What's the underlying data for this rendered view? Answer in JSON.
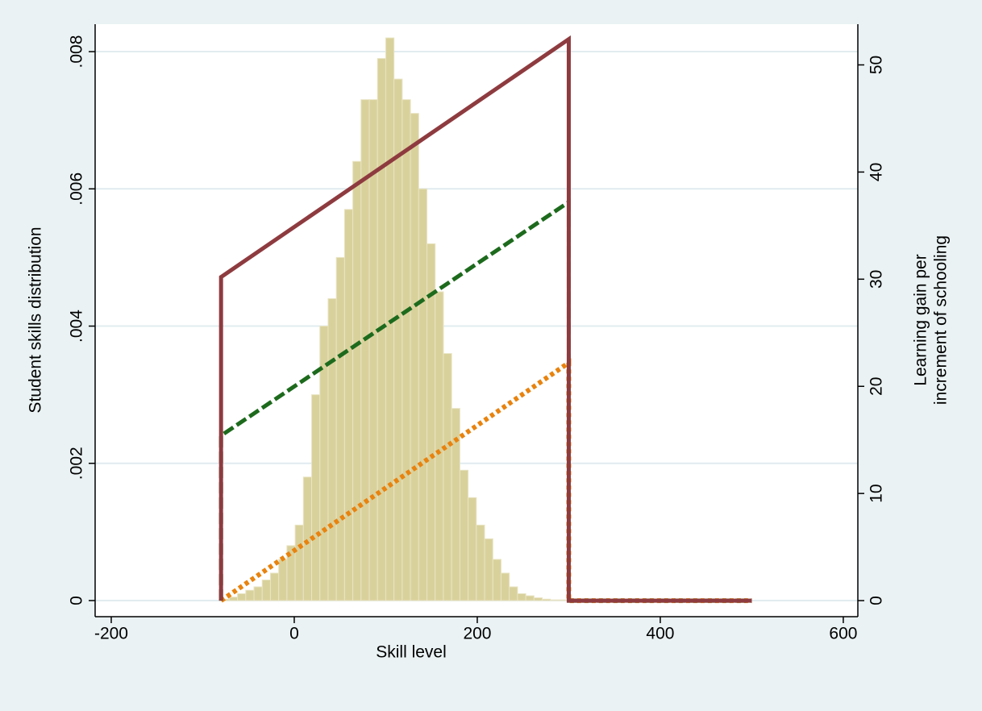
{
  "chart_data": {
    "type": "histogram",
    "xlabel": "Skill level",
    "ylabel": "Student skills distribution",
    "y2label": [
      "Learning gain per",
      "increment of schooling"
    ],
    "bins": [
      -80,
      -71,
      -62,
      -53,
      -44,
      -35,
      -26,
      -17,
      -8,
      1,
      10,
      19,
      28,
      37,
      46,
      55,
      64,
      73,
      82,
      91,
      100,
      109,
      118,
      127,
      136,
      145,
      154,
      163,
      172,
      181,
      190,
      199,
      208,
      217,
      226,
      235,
      244,
      253,
      262,
      271,
      280,
      289,
      298
    ],
    "values": [
      2e-05,
      5e-05,
      0.0001,
      0.00015,
      0.0002,
      0.0003,
      0.0004,
      0.0006,
      0.0008,
      0.0011,
      0.0018,
      0.003,
      0.004,
      0.0044,
      0.005,
      0.0057,
      0.0064,
      0.0073,
      0.0073,
      0.0079,
      0.0082,
      0.0076,
      0.0073,
      0.0071,
      0.006,
      0.0052,
      0.0045,
      0.0036,
      0.0028,
      0.0019,
      0.0015,
      0.0011,
      0.0009,
      0.0006,
      0.0004,
      0.0002,
      0.0001,
      7e-05,
      4e-05,
      2e-05,
      1e-05,
      1e-05
    ],
    "color": "#d9d19c",
    "series": [
      {
        "type": "line",
        "axis": "y2",
        "color": "#8e3b3f",
        "line_style": "solid",
        "x": [
          -80,
          -80,
          300,
          300,
          500
        ],
        "values": [
          0,
          30.2,
          52.4,
          0,
          0
        ]
      },
      {
        "type": "line",
        "axis": "y2",
        "color": "#1d6a1d",
        "line_style": "dash",
        "x": [
          -80,
          -80,
          300,
          300,
          500
        ],
        "values": [
          0,
          15.4,
          37.2,
          0,
          0
        ]
      },
      {
        "type": "line",
        "axis": "y2",
        "color": "#e8830f",
        "line_style": "dot",
        "x": [
          -80,
          300,
          300,
          500
        ],
        "values": [
          0,
          22.2,
          0,
          0
        ]
      }
    ],
    "xlim": [
      -217.6,
      615.9
    ],
    "xticks": [
      -200,
      0,
      200,
      400,
      600
    ],
    "ylim": [
      -0.000235,
      0.0084
    ],
    "yticks": [
      0,
      {
        "value": 0.002,
        "label": ".002"
      },
      {
        "value": 0.004,
        "label": ".004"
      },
      {
        "value": 0.006,
        "label": ".006"
      },
      {
        "value": 0.008,
        "label": ".008"
      }
    ],
    "y2lim": [
      -1.5,
      53.8
    ],
    "y2ticks": [
      0,
      10,
      20,
      30,
      40,
      50
    ],
    "grid": true
  }
}
